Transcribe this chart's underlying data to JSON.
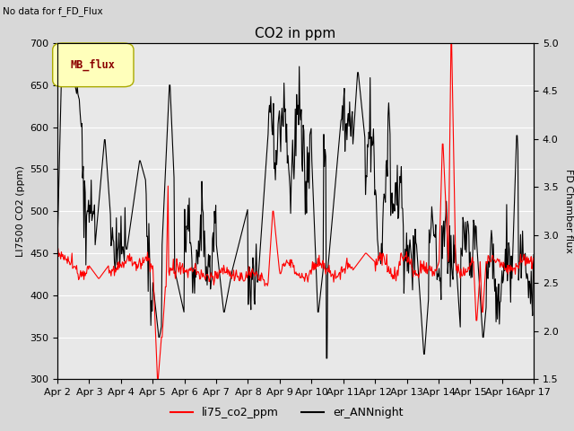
{
  "title": "CO2 in ppm",
  "no_data_text": "No data for f_FD_Flux",
  "legend_box_label": "MB_flux",
  "ylabel_left": "LI7500 CO2 (ppm)",
  "ylabel_right": "FD Chamber flux",
  "ylim_left": [
    300,
    700
  ],
  "ylim_right": [
    1.5,
    5.0
  ],
  "yticks_left": [
    300,
    350,
    400,
    450,
    500,
    550,
    600,
    650,
    700
  ],
  "yticks_right": [
    1.5,
    2.0,
    2.5,
    3.0,
    3.5,
    4.0,
    4.5,
    5.0
  ],
  "xtick_labels": [
    "Apr 2",
    "Apr 3",
    "Apr 4",
    "Apr 5",
    "Apr 6",
    "Apr 7",
    "Apr 8",
    "Apr 9",
    "Apr 10",
    "Apr 11",
    "Apr 12",
    "Apr 13",
    "Apr 14",
    "Apr 15",
    "Apr 16",
    "Apr 17"
  ],
  "red_line_label": "li75_co2_ppm",
  "black_line_label": "er_ANNnight",
  "background_color": "#d8d8d8",
  "plot_bg_color": "#e8e8e8",
  "grid_color": "white",
  "title_fontsize": 11,
  "label_fontsize": 8,
  "tick_fontsize": 8
}
